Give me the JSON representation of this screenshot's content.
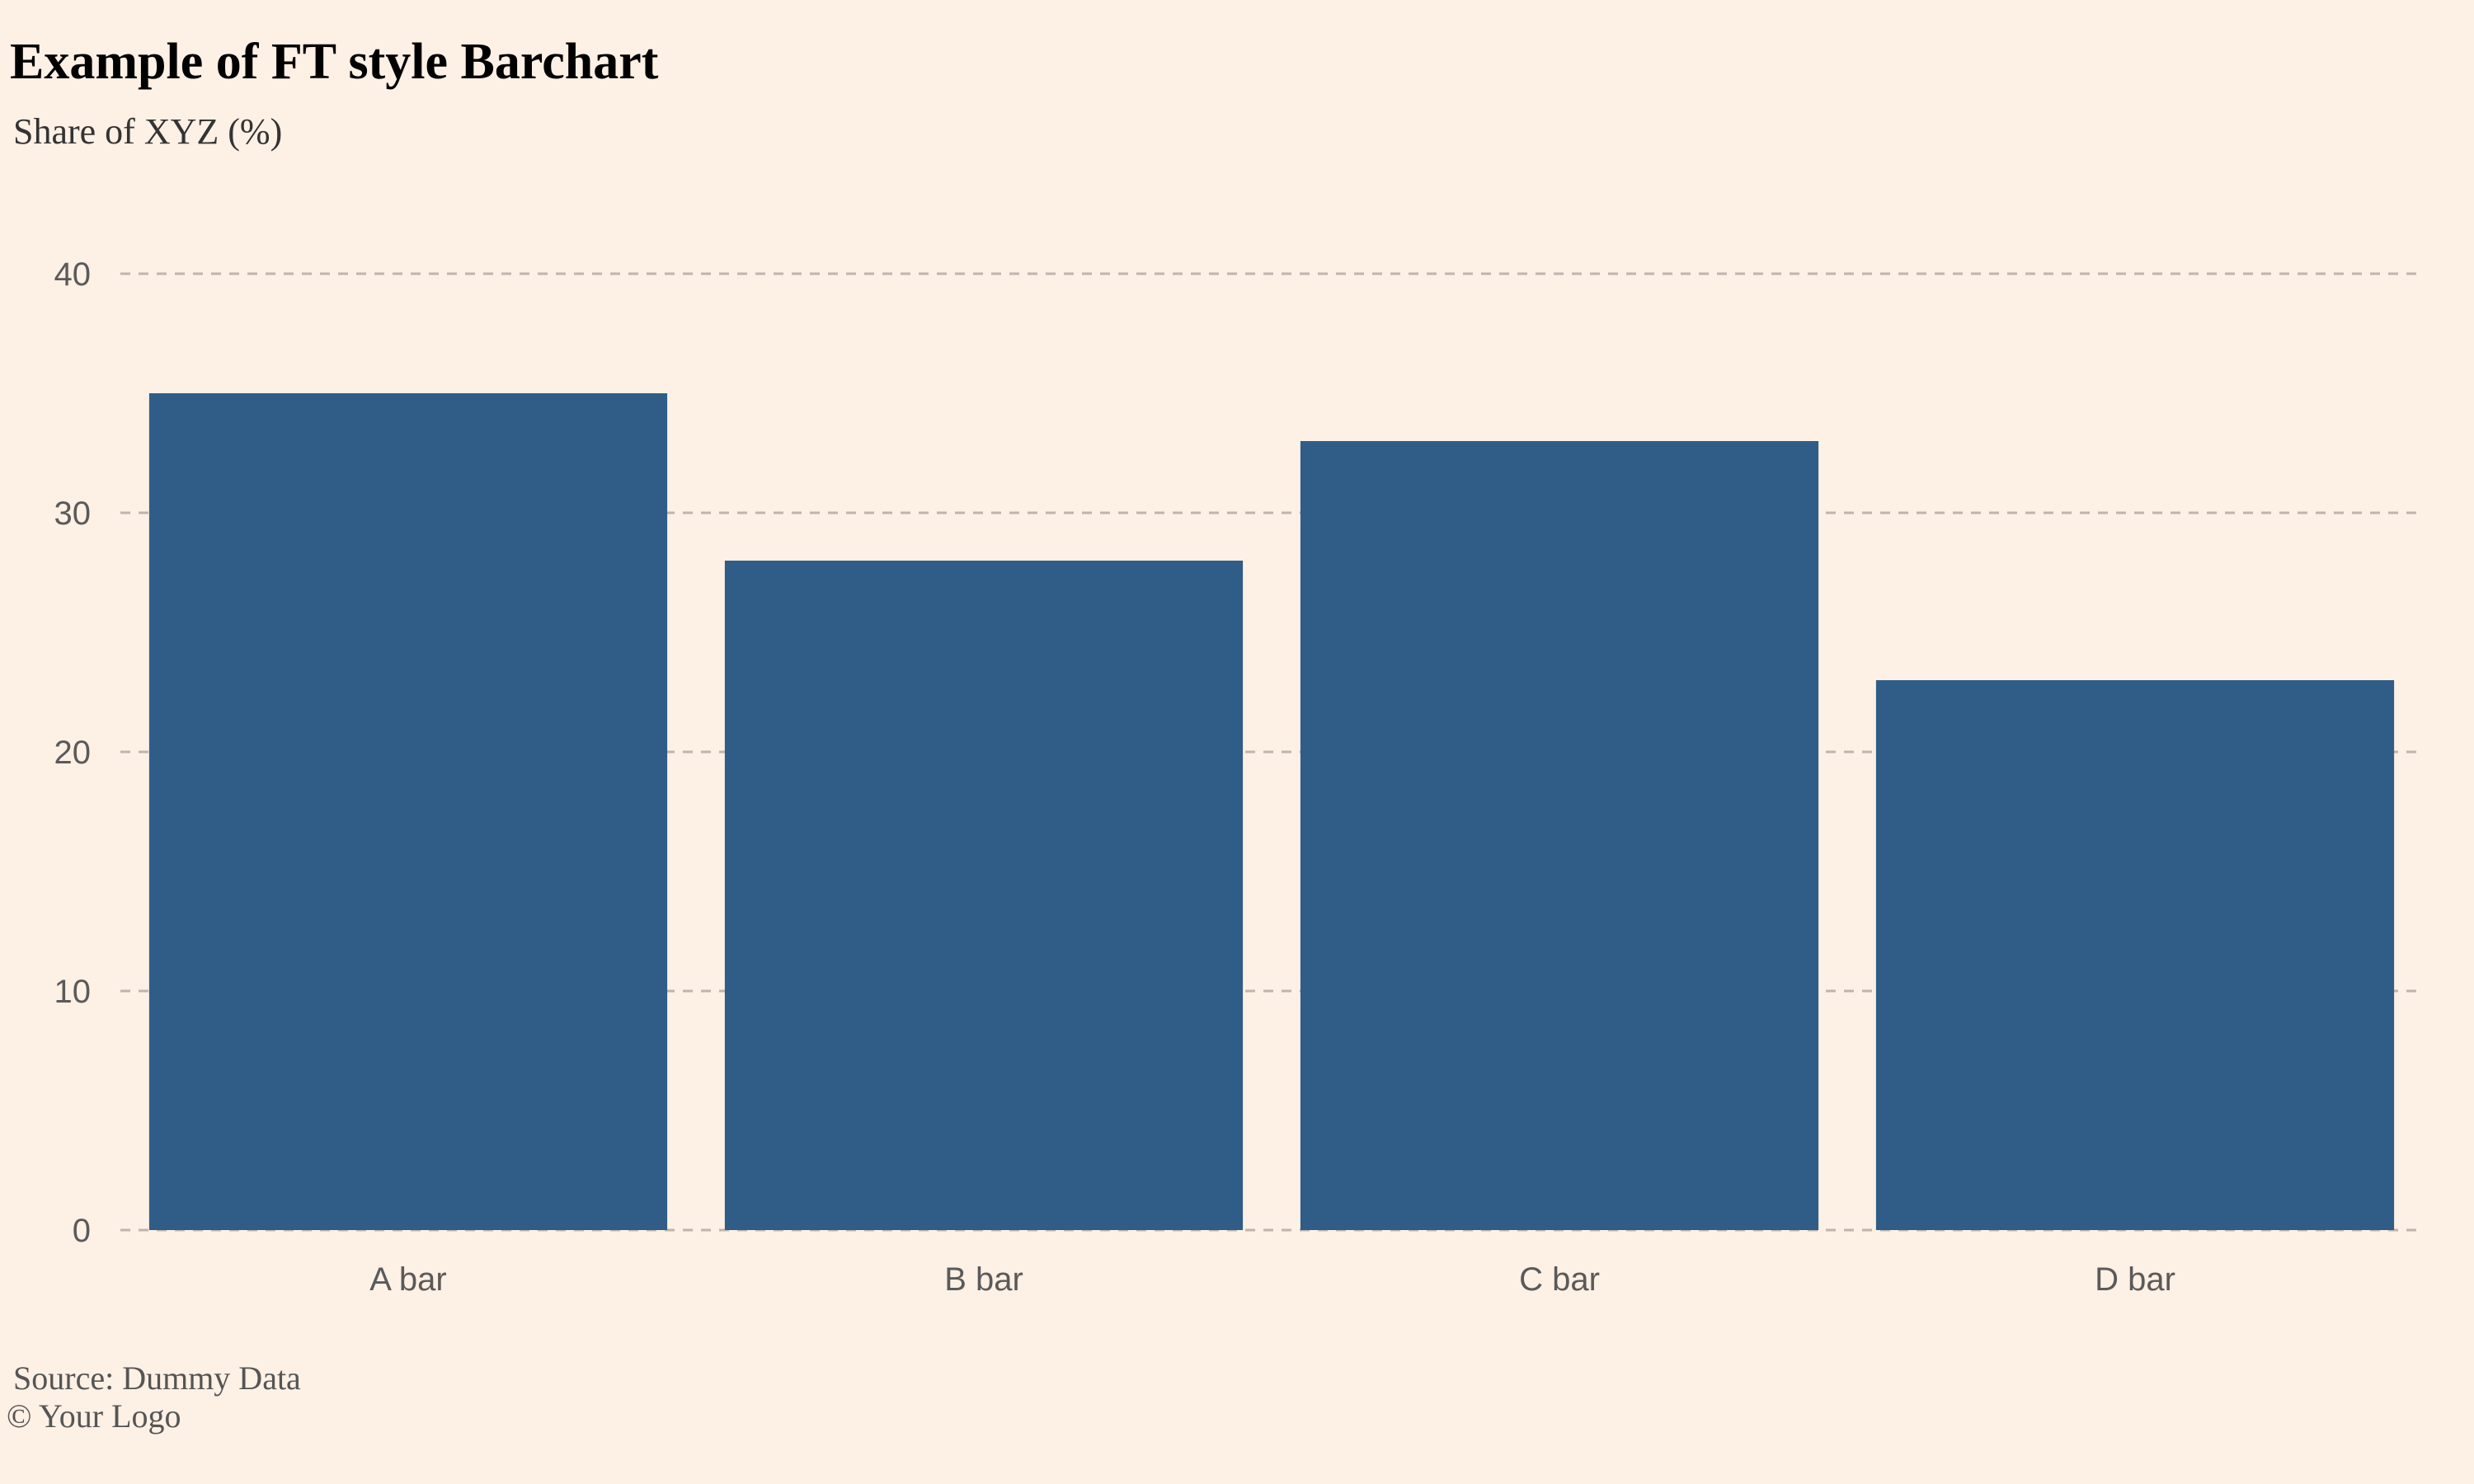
{
  "chart_data": {
    "type": "bar",
    "title": "Example of FT style Barchart",
    "subtitle": "Share of XYZ (%)",
    "categories": [
      "A bar",
      "B bar",
      "C bar",
      "D bar"
    ],
    "values": [
      35,
      28,
      33,
      23
    ],
    "ylim": [
      0,
      40
    ],
    "yticks": [
      0,
      10,
      20,
      30,
      40
    ],
    "ytick_labels": [
      "0",
      "10",
      "20",
      "30",
      "40"
    ],
    "grid": "horizontal-dashed",
    "legend": "none",
    "caption": "Source: Dummy Data",
    "logo": "© Your Logo"
  },
  "colors": {
    "background": "#FDF0E5",
    "bar": "#2F5D87",
    "grid": "#BDB6AE",
    "tick_text": "#5A5A5A"
  }
}
